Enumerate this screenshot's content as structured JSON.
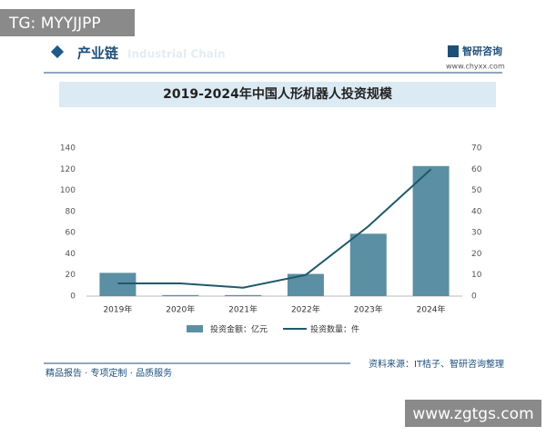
{
  "page": {
    "tag": "TG: MYYJJPP",
    "section": "产业链",
    "section_en": "Industrial Chain",
    "brand": "智研咨询",
    "brand_url": "www.chyxx.com",
    "footer": "精品报告 · 专项定制 · 品质服务",
    "source": "资料来源：IT桔子、智研咨询整理",
    "watermark": "www.zgtgs.com"
  },
  "chart_data": {
    "type": "bar",
    "title": "2019-2024年中国人形机器人投资规模",
    "categories": [
      "2019年",
      "2020年",
      "2021年",
      "2022年",
      "2023年",
      "2024年"
    ],
    "series": [
      {
        "name": "投资金额：亿元",
        "type": "bar",
        "color": "#5b8fa3",
        "values": [
          22,
          1,
          1,
          21,
          59,
          123
        ]
      },
      {
        "name": "投资数量：件",
        "type": "line",
        "axis": "y2",
        "color": "#1e5a6a",
        "values": [
          6,
          6,
          4,
          10,
          33,
          60
        ]
      }
    ],
    "ylim": [
      0,
      140
    ],
    "yticks": [
      0,
      20,
      40,
      60,
      80,
      100,
      120,
      140
    ],
    "y2lim": [
      0,
      70
    ],
    "y2ticks": [
      0,
      10,
      20,
      30,
      40,
      50,
      60,
      70
    ]
  }
}
